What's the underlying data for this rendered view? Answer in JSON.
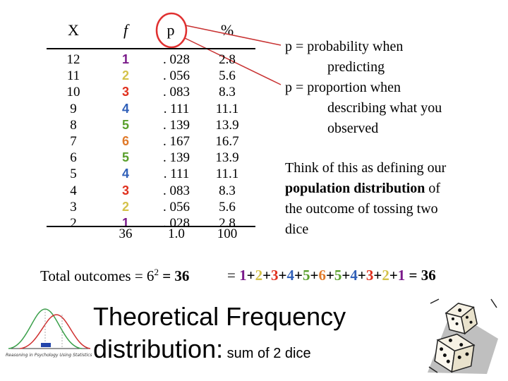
{
  "table": {
    "headers": {
      "x": "X",
      "f": "f",
      "p": "p",
      "pct": "%"
    },
    "rows": [
      {
        "x": "12",
        "f": "1",
        "p": ". 028",
        "pct": "2.8"
      },
      {
        "x": "11",
        "f": "2",
        "p": ". 056",
        "pct": "5.6"
      },
      {
        "x": "10",
        "f": "3",
        "p": ". 083",
        "pct": "8.3"
      },
      {
        "x": "9",
        "f": "4",
        "p": ". 111",
        "pct": "11.1"
      },
      {
        "x": "8",
        "f": "5",
        "p": ". 139",
        "pct": "13.9"
      },
      {
        "x": "7",
        "f": "6",
        "p": ". 167",
        "pct": "16.7"
      },
      {
        "x": "6",
        "f": "5",
        "p": ". 139",
        "pct": "13.9"
      },
      {
        "x": "5",
        "f": "4",
        "p": ". 111",
        "pct": "11.1"
      },
      {
        "x": "4",
        "f": "3",
        "p": ". 083",
        "pct": "8.3"
      },
      {
        "x": "3",
        "f": "2",
        "p": ". 056",
        "pct": "5.6"
      },
      {
        "x": "2",
        "f": "1",
        "p": ". 028",
        "pct": "2.8"
      }
    ],
    "totals": {
      "f": "36",
      "p": "1.0",
      "pct": "100"
    }
  },
  "colors": {
    "f_values": {
      "1": "#7a1a8a",
      "2": "#d4c24a",
      "3": "#e0301e",
      "4": "#2f5fb8",
      "5": "#5aa02c",
      "6": "#e07a2a"
    },
    "circle": "#e03030",
    "lines": "#c83232"
  },
  "notes": {
    "p_prob_line1": "p = probability when",
    "p_prob_line2": "predicting",
    "p_prop_line1": "p = proportion when",
    "p_prop_line2": "describing what you",
    "p_prop_line3": "observed",
    "think_pre": "Think of this as defining our",
    "think_bold": "population distribution",
    "think_post_1": " of",
    "think_line3": "the outcome of tossing two",
    "think_line4": "dice"
  },
  "formula": {
    "total_label": "Total outcomes = 6",
    "total_exp": "2",
    "total_eq": " = 36",
    "sum_prefix": "= ",
    "sum_terms": [
      "1",
      "+",
      "2",
      "+",
      "3",
      "+",
      "4",
      "+",
      "5",
      "+",
      "6",
      "+",
      "5",
      "+",
      "4",
      "+",
      "3",
      "+",
      "2",
      "+",
      "1"
    ],
    "sum_result": " = 36"
  },
  "title": {
    "line1": "Theoretical Frequency",
    "line2_big": "distribution:",
    "line2_small": " sum of 2 dice"
  },
  "logo": {
    "caption": "Reasoning in Psychology Using Statistics"
  }
}
